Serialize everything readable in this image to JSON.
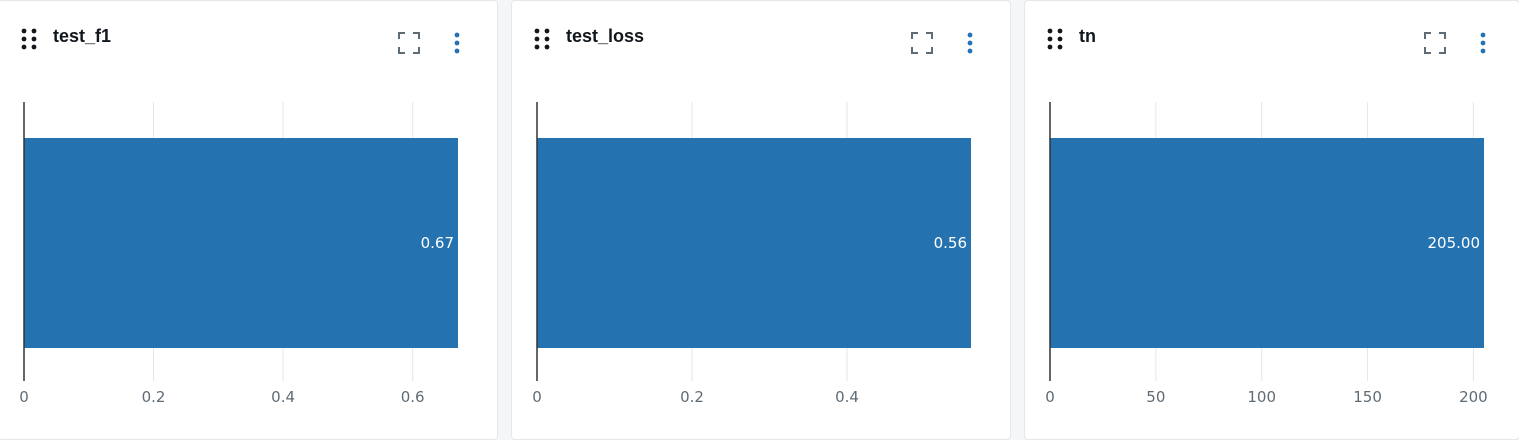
{
  "colors": {
    "bar": "#2572b1",
    "grid": "#e6e6e6",
    "axis": "#333333",
    "icon": "#5f6b75",
    "menu": "#2272b4"
  },
  "icons": {
    "drag": "drag-handle-icon",
    "fullscreen": "fullscreen-icon",
    "menu": "kebab-menu-icon"
  },
  "cards": [
    {
      "title": "test_f1",
      "value_label": "0.67",
      "ticks": [
        "0",
        "0.2",
        "0.4",
        "0.6"
      ]
    },
    {
      "title": "test_loss",
      "value_label": "0.56",
      "ticks": [
        "0",
        "0.2",
        "0.4"
      ]
    },
    {
      "title": "tn",
      "value_label": "205.00",
      "ticks": [
        "0",
        "50",
        "100",
        "150",
        "200"
      ]
    }
  ],
  "chart_data": [
    {
      "type": "bar",
      "orientation": "horizontal",
      "title": "test_f1",
      "values": [
        0.67
      ],
      "data_labels": [
        "0.67"
      ],
      "xlim": [
        0,
        0.67
      ],
      "xticks": [
        0,
        0.2,
        0.4,
        0.6
      ],
      "grid": true
    },
    {
      "type": "bar",
      "orientation": "horizontal",
      "title": "test_loss",
      "values": [
        0.56
      ],
      "data_labels": [
        "0.56"
      ],
      "xlim": [
        0,
        0.56
      ],
      "xticks": [
        0,
        0.2,
        0.4
      ],
      "grid": true
    },
    {
      "type": "bar",
      "orientation": "horizontal",
      "title": "tn",
      "values": [
        205
      ],
      "data_labels": [
        "205.00"
      ],
      "xlim": [
        0,
        205
      ],
      "xticks": [
        0,
        50,
        100,
        150,
        200
      ],
      "grid": true
    }
  ]
}
